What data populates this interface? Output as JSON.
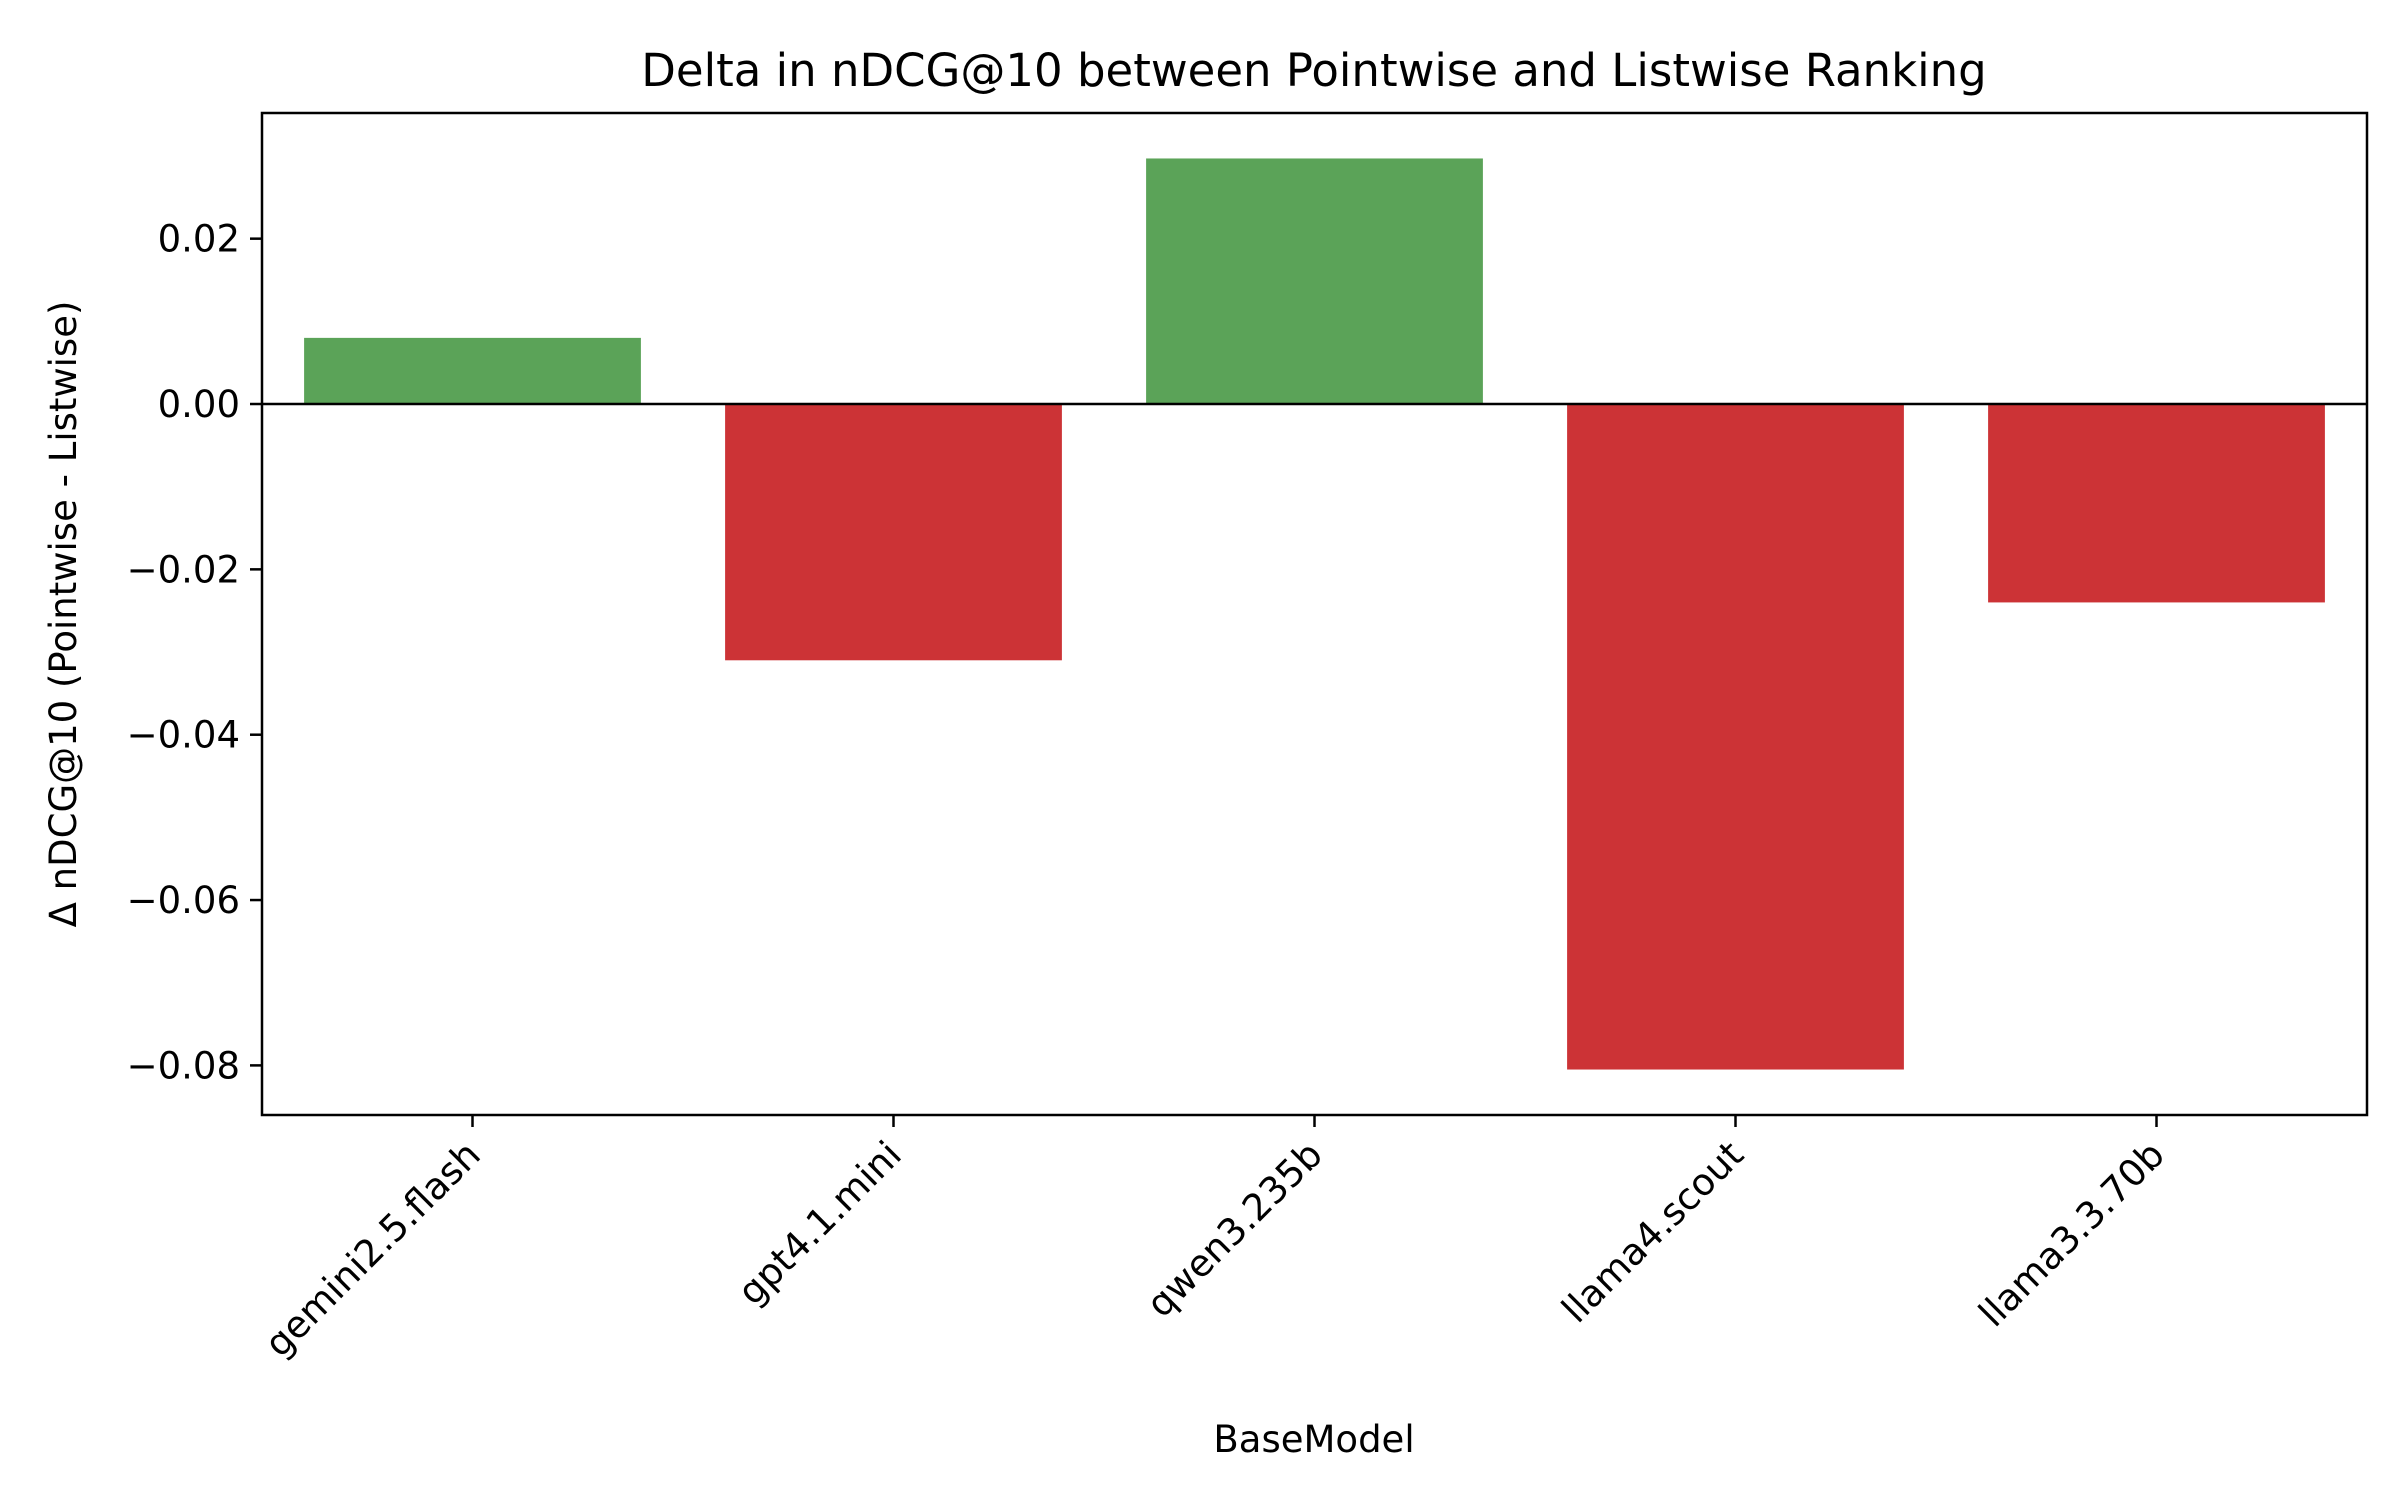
{
  "chart_data": {
    "type": "bar",
    "title": "Delta in nDCG@10 between Pointwise and Listwise Ranking",
    "xlabel": "BaseModel",
    "ylabel": "Δ nDCG@10 (Pointwise - Listwise)",
    "categories": [
      "gemini2.5.flash",
      "gpt4.1.mini",
      "qwen3.235b",
      "llama4.scout",
      "llama3.3.70b"
    ],
    "values": [
      0.008,
      -0.031,
      0.0297,
      -0.0805,
      -0.024
    ],
    "ylim": [
      -0.086,
      0.0352
    ],
    "yticks": [
      0.02,
      0.0,
      -0.02,
      -0.04,
      -0.06,
      -0.08
    ],
    "ytick_labels": [
      "0.02",
      "0.00",
      "−0.02",
      "−0.04",
      "−0.06",
      "−0.08"
    ],
    "grid": false,
    "legend": "none",
    "zero_line": true,
    "colors": {
      "positive": "#5ba358",
      "negative": "#cc3336",
      "axis": "#000000"
    }
  }
}
